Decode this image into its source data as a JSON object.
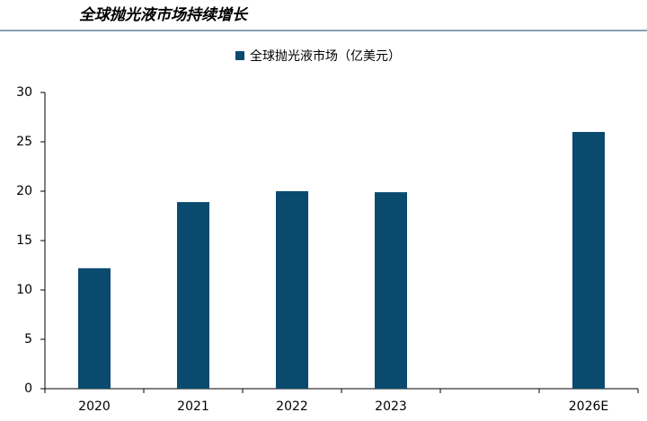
{
  "chart_data": {
    "type": "bar",
    "title": "全球抛光液市场持续增长",
    "categories": [
      "2020",
      "2021",
      "2022",
      "2023",
      null,
      "2026E"
    ],
    "series": [
      {
        "name": "全球抛光液市场（亿美元）",
        "color": "#0b4a6f",
        "values": [
          12.2,
          18.9,
          20.0,
          19.9,
          null,
          26.0
        ]
      }
    ],
    "ylim": [
      0,
      30
    ],
    "yticks": [
      0,
      5,
      10,
      15,
      20,
      25,
      30
    ],
    "grid": false,
    "legend": "top"
  }
}
